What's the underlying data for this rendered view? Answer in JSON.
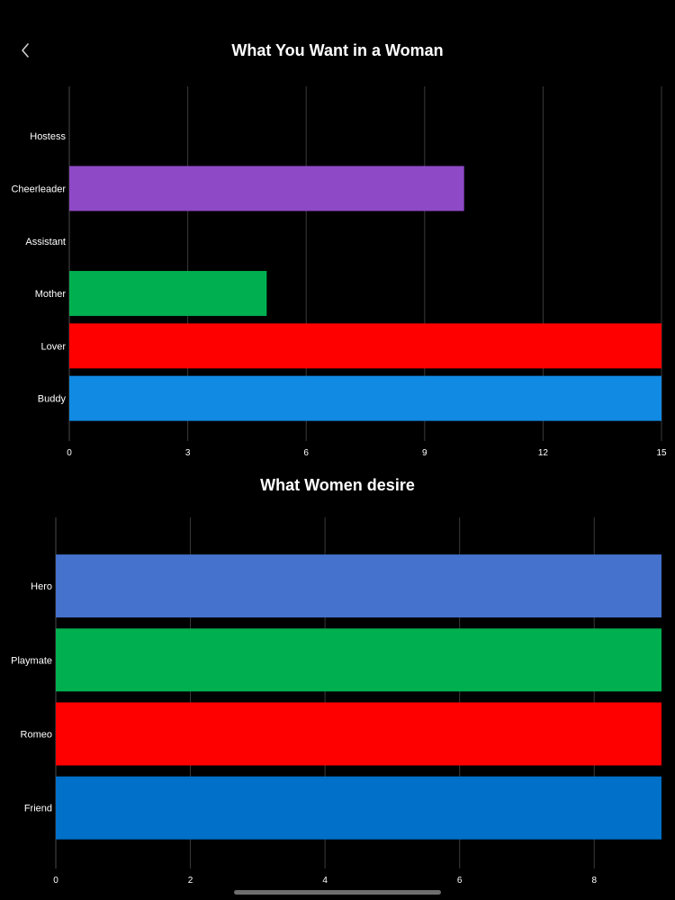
{
  "navigation": {
    "back_icon": "chevron-left-icon"
  },
  "chart_data": [
    {
      "type": "bar",
      "orientation": "horizontal",
      "title": "What You Want in a Woman",
      "categories": [
        "Hostess",
        "Cheerleader",
        "Assistant",
        "Mother",
        "Lover",
        "Buddy"
      ],
      "values": [
        0,
        10,
        0,
        5,
        15,
        15
      ],
      "colors": [
        "#ffffff",
        "#8e49c6",
        "#ffffff",
        "#00b050",
        "#ff0000",
        "#118ae4"
      ],
      "xlim": [
        0,
        15
      ],
      "xticks": [
        0,
        3,
        6,
        9,
        12,
        15
      ],
      "grid": true,
      "legend": "none"
    },
    {
      "type": "bar",
      "orientation": "horizontal",
      "title": "What Women desire",
      "categories": [
        "Hero",
        "Playmate",
        "Romeo",
        "Friend"
      ],
      "values": [
        9,
        9,
        9,
        9
      ],
      "colors": [
        "#4472cd",
        "#00b050",
        "#ff0000",
        "#0070c8"
      ],
      "xlim": [
        0,
        9
      ],
      "xticks": [
        0,
        2,
        4,
        6,
        8
      ],
      "grid": true,
      "legend": "none"
    }
  ]
}
